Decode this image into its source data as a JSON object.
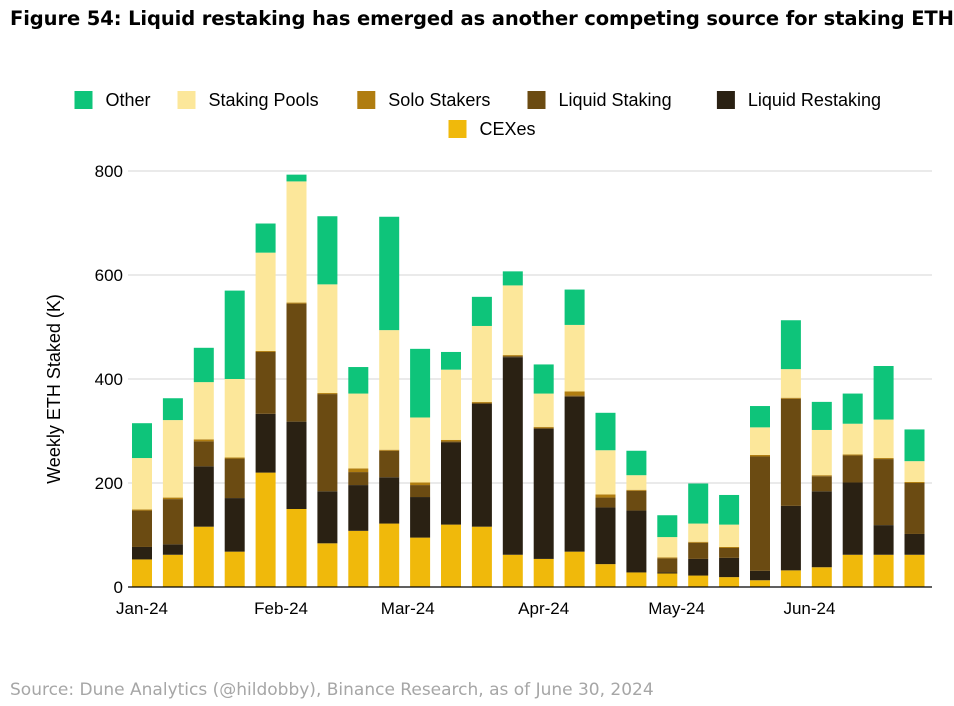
{
  "figure": {
    "title": "Figure 54: Liquid restaking has emerged as another competing source for staking ETH",
    "source": "Source: Dune Analytics (@hildobby), Binance Research, as of June 30, 2024"
  },
  "chart_data": {
    "type": "bar",
    "stacked": true,
    "title": "Figure 54: Liquid restaking has emerged as another competing source for staking ETH",
    "xlabel": "",
    "ylabel": "Weekly ETH Staked (K)",
    "ylim": [
      0,
      800
    ],
    "yticks": [
      0,
      200,
      400,
      600,
      800
    ],
    "grid": true,
    "legend_position": "top",
    "x_tick_labels": [
      {
        "label": "Jan-24",
        "at_bar": 0
      },
      {
        "label": "Feb-24",
        "at_bar": 4.5
      },
      {
        "label": "Mar-24",
        "at_bar": 8.6
      },
      {
        "label": "Apr-24",
        "at_bar": 13
      },
      {
        "label": "May-24",
        "at_bar": 17.3
      },
      {
        "label": "Jun-24",
        "at_bar": 21.6
      }
    ],
    "legend_order": [
      "Other",
      "Staking Pools",
      "Solo Stakers",
      "Liquid Staking",
      "Liquid Restaking",
      "CEXes"
    ],
    "stack_order": [
      "CEXes",
      "Liquid Restaking",
      "Liquid Staking",
      "Solo Stakers",
      "Staking Pools",
      "Other"
    ],
    "colors": {
      "Other": "#0ec47a",
      "Staking Pools": "#fce79a",
      "Solo Stakers": "#b07d10",
      "Liquid Staking": "#6b4b12",
      "Liquid Restaking": "#2a2113",
      "CEXes": "#f0b90b"
    },
    "series": [
      {
        "name": "CEXes",
        "values": [
          53,
          62,
          116,
          68,
          220,
          150,
          84,
          108,
          122,
          95,
          120,
          116,
          62,
          54,
          68,
          44,
          28,
          26,
          22,
          19,
          13,
          32,
          38,
          62,
          62,
          62
        ]
      },
      {
        "name": "Liquid Restaking",
        "values": [
          24,
          20,
          116,
          103,
          113,
          168,
          100,
          88,
          89,
          78,
          158,
          236,
          380,
          250,
          298,
          109,
          119,
          2,
          32,
          37,
          18,
          124,
          146,
          139,
          57,
          40
        ]
      },
      {
        "name": "Liquid Staking",
        "values": [
          70,
          87,
          48,
          76,
          119,
          227,
          187,
          25,
          51,
          23,
          2,
          2,
          2,
          2,
          2,
          19,
          38,
          27,
          31,
          19,
          220,
          206,
          29,
          52,
          127,
          98
        ]
      },
      {
        "name": "Solo Stakers",
        "values": [
          2,
          3,
          4,
          2,
          2,
          2,
          2,
          7,
          2,
          5,
          3,
          2,
          2,
          2,
          8,
          6,
          2,
          2,
          2,
          2,
          3,
          2,
          2,
          2,
          2,
          2
        ]
      },
      {
        "name": "Staking Pools",
        "values": [
          99,
          149,
          110,
          151,
          189,
          233,
          209,
          144,
          230,
          125,
          135,
          146,
          134,
          64,
          128,
          85,
          28,
          39,
          35,
          43,
          53,
          55,
          87,
          59,
          74,
          40
        ]
      },
      {
        "name": "Other",
        "values": [
          67,
          42,
          66,
          170,
          56,
          13,
          131,
          51,
          218,
          132,
          34,
          56,
          27,
          56,
          68,
          72,
          47,
          42,
          77,
          57,
          41,
          94,
          54,
          58,
          103,
          61
        ]
      }
    ]
  }
}
